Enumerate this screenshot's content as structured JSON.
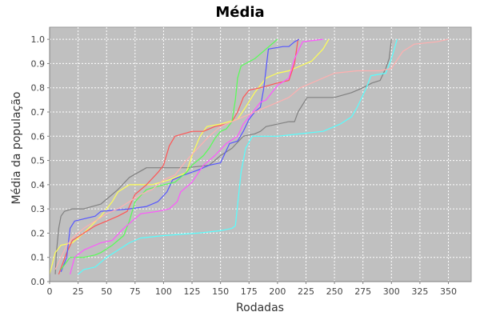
{
  "chart_data": {
    "type": "line",
    "title": "Média",
    "xlabel": "Rodadas",
    "ylabel": "Média da população",
    "xlim": [
      0,
      370
    ],
    "ylim": [
      0,
      1.05
    ],
    "xticks": [
      0,
      25,
      50,
      75,
      100,
      125,
      150,
      175,
      200,
      225,
      250,
      275,
      300,
      325,
      350
    ],
    "yticks": [
      0.0,
      0.1,
      0.2,
      0.3,
      0.4,
      0.5,
      0.6,
      0.7,
      0.8,
      0.9,
      1.0
    ],
    "grid": true,
    "legend": false,
    "background": "#c0c0c0",
    "series": [
      {
        "color": "#808080",
        "points": [
          [
            5,
            0.03
          ],
          [
            6,
            0.12
          ],
          [
            8,
            0.22
          ],
          [
            10,
            0.27
          ],
          [
            13,
            0.29
          ],
          [
            20,
            0.3
          ],
          [
            30,
            0.3
          ],
          [
            45,
            0.32
          ],
          [
            50,
            0.34
          ],
          [
            60,
            0.38
          ],
          [
            70,
            0.43
          ],
          [
            85,
            0.47
          ],
          [
            100,
            0.47
          ],
          [
            120,
            0.47
          ],
          [
            140,
            0.48
          ],
          [
            150,
            0.52
          ],
          [
            160,
            0.55
          ],
          [
            170,
            0.6
          ],
          [
            180,
            0.61
          ],
          [
            185,
            0.62
          ],
          [
            190,
            0.64
          ],
          [
            210,
            0.66
          ],
          [
            215,
            0.66
          ],
          [
            218,
            0.7
          ],
          [
            222,
            0.73
          ],
          [
            226,
            0.76
          ],
          [
            250,
            0.76
          ],
          [
            265,
            0.78
          ],
          [
            275,
            0.8
          ],
          [
            283,
            0.82
          ],
          [
            290,
            0.83
          ],
          [
            295,
            0.88
          ],
          [
            298,
            0.92
          ],
          [
            300,
            1.0
          ]
        ]
      },
      {
        "color": "#ffff55",
        "points": [
          [
            0,
            0.03
          ],
          [
            5,
            0.12
          ],
          [
            10,
            0.15
          ],
          [
            20,
            0.16
          ],
          [
            30,
            0.2
          ],
          [
            45,
            0.27
          ],
          [
            55,
            0.33
          ],
          [
            60,
            0.37
          ],
          [
            70,
            0.4
          ],
          [
            80,
            0.4
          ],
          [
            90,
            0.4
          ],
          [
            105,
            0.42
          ],
          [
            120,
            0.45
          ],
          [
            125,
            0.52
          ],
          [
            132,
            0.6
          ],
          [
            138,
            0.64
          ],
          [
            150,
            0.65
          ],
          [
            165,
            0.67
          ],
          [
            172,
            0.72
          ],
          [
            180,
            0.78
          ],
          [
            190,
            0.84
          ],
          [
            200,
            0.86
          ],
          [
            210,
            0.87
          ],
          [
            230,
            0.91
          ],
          [
            240,
            0.96
          ],
          [
            245,
            1.0
          ]
        ]
      },
      {
        "color": "#ff5555",
        "points": [
          [
            8,
            0.03
          ],
          [
            15,
            0.12
          ],
          [
            20,
            0.17
          ],
          [
            30,
            0.2
          ],
          [
            40,
            0.23
          ],
          [
            50,
            0.25
          ],
          [
            60,
            0.27
          ],
          [
            68,
            0.29
          ],
          [
            75,
            0.36
          ],
          [
            85,
            0.4
          ],
          [
            95,
            0.45
          ],
          [
            100,
            0.48
          ],
          [
            105,
            0.56
          ],
          [
            110,
            0.6
          ],
          [
            125,
            0.62
          ],
          [
            135,
            0.62
          ],
          [
            145,
            0.64
          ],
          [
            155,
            0.65
          ],
          [
            160,
            0.66
          ],
          [
            165,
            0.7
          ],
          [
            170,
            0.76
          ],
          [
            175,
            0.79
          ],
          [
            185,
            0.8
          ],
          [
            200,
            0.82
          ],
          [
            210,
            0.83
          ],
          [
            215,
            0.9
          ],
          [
            218,
            1.0
          ]
        ]
      },
      {
        "color": "#5555ff",
        "points": [
          [
            10,
            0.04
          ],
          [
            15,
            0.1
          ],
          [
            18,
            0.22
          ],
          [
            22,
            0.25
          ],
          [
            40,
            0.27
          ],
          [
            45,
            0.29
          ],
          [
            70,
            0.3
          ],
          [
            85,
            0.31
          ],
          [
            95,
            0.33
          ],
          [
            103,
            0.37
          ],
          [
            108,
            0.42
          ],
          [
            118,
            0.44
          ],
          [
            130,
            0.46
          ],
          [
            140,
            0.48
          ],
          [
            150,
            0.49
          ],
          [
            158,
            0.57
          ],
          [
            165,
            0.58
          ],
          [
            170,
            0.62
          ],
          [
            175,
            0.67
          ],
          [
            180,
            0.7
          ],
          [
            185,
            0.72
          ],
          [
            188,
            0.8
          ],
          [
            192,
            0.96
          ],
          [
            205,
            0.97
          ],
          [
            210,
            0.97
          ],
          [
            215,
            0.99
          ],
          [
            219,
            1.0
          ]
        ]
      },
      {
        "color": "#55ff55",
        "points": [
          [
            10,
            0.05
          ],
          [
            18,
            0.1
          ],
          [
            30,
            0.1
          ],
          [
            40,
            0.11
          ],
          [
            45,
            0.12
          ],
          [
            55,
            0.15
          ],
          [
            60,
            0.17
          ],
          [
            65,
            0.19
          ],
          [
            70,
            0.25
          ],
          [
            75,
            0.33
          ],
          [
            85,
            0.38
          ],
          [
            100,
            0.4
          ],
          [
            110,
            0.41
          ],
          [
            115,
            0.43
          ],
          [
            120,
            0.45
          ],
          [
            125,
            0.48
          ],
          [
            135,
            0.52
          ],
          [
            140,
            0.55
          ],
          [
            145,
            0.59
          ],
          [
            150,
            0.62
          ],
          [
            155,
            0.63
          ],
          [
            160,
            0.66
          ],
          [
            163,
            0.75
          ],
          [
            165,
            0.84
          ],
          [
            168,
            0.89
          ],
          [
            180,
            0.92
          ],
          [
            190,
            0.96
          ],
          [
            200,
            1.0
          ]
        ]
      },
      {
        "color": "#ff55ff",
        "points": [
          [
            18,
            0.03
          ],
          [
            22,
            0.1
          ],
          [
            30,
            0.13
          ],
          [
            45,
            0.16
          ],
          [
            55,
            0.17
          ],
          [
            65,
            0.22
          ],
          [
            80,
            0.28
          ],
          [
            95,
            0.29
          ],
          [
            105,
            0.3
          ],
          [
            112,
            0.33
          ],
          [
            115,
            0.37
          ],
          [
            125,
            0.41
          ],
          [
            135,
            0.48
          ],
          [
            145,
            0.52
          ],
          [
            155,
            0.57
          ],
          [
            165,
            0.6
          ],
          [
            170,
            0.65
          ],
          [
            175,
            0.68
          ],
          [
            180,
            0.71
          ],
          [
            185,
            0.74
          ],
          [
            190,
            0.75
          ],
          [
            200,
            0.81
          ],
          [
            210,
            0.84
          ],
          [
            215,
            0.92
          ],
          [
            222,
            0.99
          ],
          [
            240,
            1.0
          ]
        ]
      },
      {
        "color": "#55ffff",
        "points": [
          [
            25,
            0.03
          ],
          [
            30,
            0.05
          ],
          [
            40,
            0.06
          ],
          [
            50,
            0.1
          ],
          [
            60,
            0.13
          ],
          [
            70,
            0.16
          ],
          [
            80,
            0.18
          ],
          [
            100,
            0.19
          ],
          [
            130,
            0.2
          ],
          [
            150,
            0.21
          ],
          [
            160,
            0.22
          ],
          [
            163,
            0.23
          ],
          [
            168,
            0.45
          ],
          [
            172,
            0.55
          ],
          [
            178,
            0.6
          ],
          [
            200,
            0.6
          ],
          [
            240,
            0.62
          ],
          [
            255,
            0.65
          ],
          [
            265,
            0.68
          ],
          [
            270,
            0.72
          ],
          [
            278,
            0.8
          ],
          [
            282,
            0.85
          ],
          [
            295,
            0.86
          ],
          [
            300,
            0.92
          ],
          [
            305,
            1.0
          ]
        ]
      },
      {
        "color": "#ffb0b0",
        "points": [
          [
            5,
            0.05
          ],
          [
            10,
            0.1
          ],
          [
            15,
            0.15
          ],
          [
            20,
            0.18
          ],
          [
            25,
            0.2
          ],
          [
            30,
            0.22
          ],
          [
            40,
            0.25
          ],
          [
            50,
            0.28
          ],
          [
            60,
            0.3
          ],
          [
            70,
            0.33
          ],
          [
            80,
            0.36
          ],
          [
            90,
            0.38
          ],
          [
            100,
            0.42
          ],
          [
            110,
            0.44
          ],
          [
            120,
            0.5
          ],
          [
            130,
            0.55
          ],
          [
            140,
            0.6
          ],
          [
            150,
            0.64
          ],
          [
            160,
            0.66
          ],
          [
            170,
            0.68
          ],
          [
            180,
            0.7
          ],
          [
            190,
            0.72
          ],
          [
            200,
            0.74
          ],
          [
            210,
            0.76
          ],
          [
            220,
            0.8
          ],
          [
            230,
            0.82
          ],
          [
            240,
            0.84
          ],
          [
            250,
            0.86
          ],
          [
            270,
            0.87
          ],
          [
            290,
            0.87
          ],
          [
            300,
            0.88
          ],
          [
            310,
            0.95
          ],
          [
            320,
            0.98
          ],
          [
            340,
            0.99
          ],
          [
            350,
            1.0
          ]
        ]
      }
    ]
  }
}
